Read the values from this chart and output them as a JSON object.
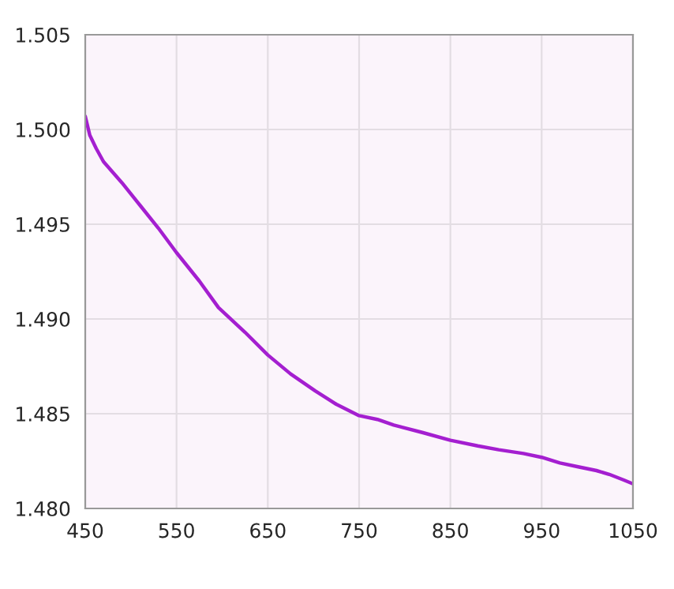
{
  "chart_data": {
    "type": "line",
    "x": [
      450,
      455,
      462,
      470,
      490,
      510,
      530,
      550,
      575,
      596,
      625,
      650,
      675,
      702,
      725,
      750,
      770,
      788,
      820,
      850,
      880,
      903,
      930,
      950,
      970,
      990,
      1010,
      1024,
      1040,
      1050
    ],
    "series": [
      {
        "color": "#a41fd0",
        "values": [
          1.5007,
          1.4997,
          1.499,
          1.4983,
          1.4972,
          1.496,
          1.4948,
          1.4935,
          1.492,
          1.4906,
          1.4893,
          1.4881,
          1.4871,
          1.4862,
          1.4855,
          1.4849,
          1.4847,
          1.4844,
          1.484,
          1.4836,
          1.4833,
          1.4831,
          1.4829,
          1.4827,
          1.4824,
          1.4822,
          1.482,
          1.4818,
          1.4815,
          1.4813
        ]
      }
    ],
    "xlim": [
      450,
      1050
    ],
    "xticks": [
      450,
      550,
      650,
      750,
      850,
      950,
      1050
    ],
    "ylim": [
      1.48,
      1.505
    ],
    "yticks": [
      {
        "value": 1.48,
        "label": "1.480"
      },
      {
        "value": 1.485,
        "label": "1.485"
      },
      {
        "value": 1.49,
        "label": "1.490"
      },
      {
        "value": 1.495,
        "label": "1.495"
      },
      {
        "value": 1.5,
        "label": "1.500"
      },
      {
        "value": 1.505,
        "label": "1.505"
      }
    ],
    "grid": true,
    "marker": "none",
    "line_style": "solid"
  }
}
